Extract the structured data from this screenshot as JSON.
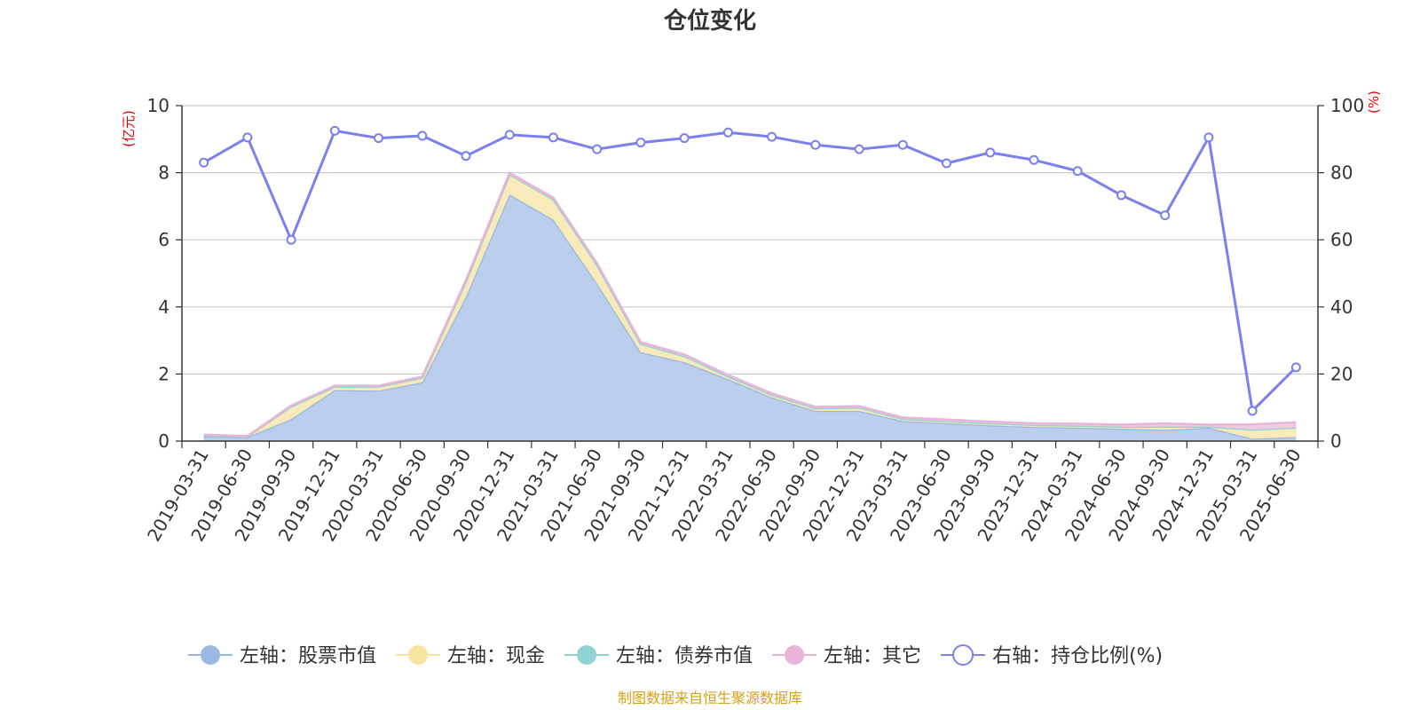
{
  "chart_data": {
    "type": "area",
    "title": "仓位变化",
    "left_axis_unit": "(亿元)",
    "right_axis_unit": "(%)",
    "left_ylim": [
      0,
      10
    ],
    "left_ticks": [
      "0",
      "2",
      "4",
      "6",
      "8",
      "10"
    ],
    "right_ylim": [
      0,
      100
    ],
    "right_ticks": [
      "0",
      "20",
      "40",
      "60",
      "80",
      "100"
    ],
    "grid": true,
    "legend_position": "bottom",
    "categories": [
      "2019-03-31",
      "2019-06-30",
      "2019-09-30",
      "2019-12-31",
      "2020-03-31",
      "2020-06-30",
      "2020-09-30",
      "2020-12-31",
      "2021-03-31",
      "2021-06-30",
      "2021-09-30",
      "2021-12-31",
      "2022-03-31",
      "2022-06-30",
      "2022-09-30",
      "2022-12-31",
      "2023-03-31",
      "2023-06-30",
      "2023-09-30",
      "2023-12-31",
      "2024-03-31",
      "2024-06-30",
      "2024-09-30",
      "2024-12-31",
      "2025-03-31",
      "2025-06-30"
    ],
    "series": [
      {
        "name": "左轴：股票市值",
        "axis": "left",
        "kind": "stacked-area",
        "color": "#9bb8e3",
        "fill": "#b7cceb",
        "values": [
          0.14,
          0.12,
          0.65,
          1.52,
          1.5,
          1.75,
          4.3,
          7.35,
          6.6,
          4.7,
          2.65,
          2.35,
          1.85,
          1.3,
          0.9,
          0.9,
          0.6,
          0.53,
          0.47,
          0.42,
          0.4,
          0.37,
          0.33,
          0.4,
          0.07,
          0.12
        ]
      },
      {
        "name": "左轴：现金",
        "axis": "left",
        "kind": "stacked-area",
        "color": "#f7e4a0",
        "fill": "#f9e9b5",
        "values": [
          0.03,
          0.02,
          0.38,
          0.1,
          0.12,
          0.14,
          0.45,
          0.6,
          0.6,
          0.55,
          0.25,
          0.18,
          0.08,
          0.08,
          0.08,
          0.1,
          0.06,
          0.06,
          0.06,
          0.06,
          0.06,
          0.06,
          0.1,
          0.03,
          0.27,
          0.28
        ]
      },
      {
        "name": "左轴：债券市值",
        "axis": "left",
        "kind": "stacked-area",
        "color": "#8fd3d3",
        "fill": "#b2e3e3",
        "values": [
          0,
          0,
          0,
          0,
          0,
          0,
          0,
          0,
          0,
          0,
          0,
          0,
          0,
          0,
          0,
          0,
          0,
          0,
          0,
          0,
          0,
          0,
          0,
          0,
          0,
          0
        ]
      },
      {
        "name": "左轴：其它",
        "axis": "left",
        "kind": "stacked-area",
        "color": "#e8b4d8",
        "fill": "#efc8e3",
        "values": [
          0.02,
          0.01,
          0.03,
          0.03,
          0.03,
          0.03,
          0.05,
          0.05,
          0.05,
          0.05,
          0.05,
          0.05,
          0.04,
          0.04,
          0.04,
          0.04,
          0.04,
          0.05,
          0.05,
          0.05,
          0.06,
          0.06,
          0.1,
          0.06,
          0.16,
          0.16
        ]
      },
      {
        "name": "右轴：持仓比例(%)",
        "axis": "right",
        "kind": "line",
        "color": "#7b7ff0",
        "values": [
          83,
          90.5,
          60,
          92.5,
          90.3,
          91,
          85,
          91.3,
          90.5,
          87,
          89,
          90.3,
          92,
          90.7,
          88.3,
          87,
          88.3,
          82.8,
          86,
          83.8,
          80.5,
          73.3,
          67.3,
          90.5,
          9,
          22
        ]
      }
    ],
    "source_note": "制图数据来自恒生聚源数据库"
  }
}
